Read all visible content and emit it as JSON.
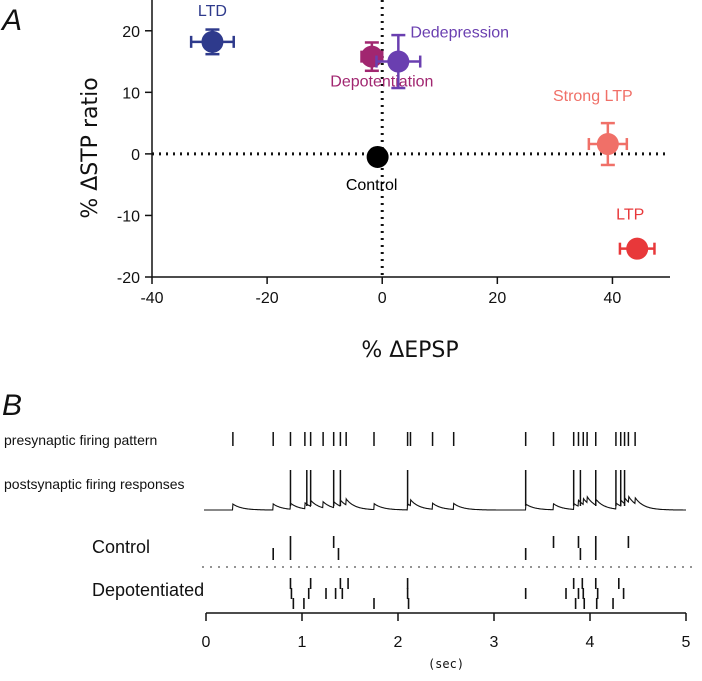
{
  "chart_data": [
    {
      "type": "scatter",
      "panel": "A",
      "xlabel": "% ΔEPSP",
      "ylabel": "% ΔSTP ratio",
      "xlim": [
        -40,
        50
      ],
      "ylim": [
        -20,
        25
      ],
      "xticks": [
        -40,
        -20,
        0,
        20,
        40
      ],
      "yticks": [
        -20,
        -10,
        0,
        10,
        20
      ],
      "grid": false,
      "reference_lines": [
        "x = 0 (dotted)",
        "y = 0 (dotted)"
      ],
      "points": [
        {
          "label": "LTD",
          "x": -29.5,
          "y": 18.2,
          "xerr": 3.7,
          "yerr": 2.0,
          "color": "#2e3a8c",
          "label_color": "#2e3a8c"
        },
        {
          "label": "Depotentiation",
          "x": -1.8,
          "y": 15.8,
          "xerr": 1.8,
          "yerr": 2.3,
          "color": "#a12670",
          "label_color": "#a12670"
        },
        {
          "label": "Dedepression",
          "x": 2.8,
          "y": 15.0,
          "xerr": 3.8,
          "yerr": 4.3,
          "color": "#6a3fb0",
          "label_color": "#6a3fb0"
        },
        {
          "label": "Control",
          "x": -0.8,
          "y": -0.5,
          "xerr": 0,
          "yerr": 0,
          "color": "#000000",
          "label_color": "#000000"
        },
        {
          "label": "Strong LTP",
          "x": 39.2,
          "y": 1.6,
          "xerr": 3.3,
          "yerr": 3.4,
          "color": "#f07068",
          "label_color": "#f07068"
        },
        {
          "label": "LTP",
          "x": 44.3,
          "y": -15.4,
          "xerr": 3.0,
          "yerr": 1.1,
          "color": "#e8383a",
          "label_color": "#e8383a"
        }
      ]
    },
    {
      "type": "raster",
      "panel": "B",
      "xlim": [
        0,
        5
      ],
      "xticks": [
        0,
        1,
        2,
        3,
        4,
        5
      ],
      "xunit": "(sec)",
      "rows": {
        "presynaptic_label": "presynaptic firing pattern",
        "postsynaptic_label": "postsynaptic firing responses",
        "control_label": "Control",
        "depotentiated_label": "Depotentiated"
      },
      "presynaptic_spikes": [
        0.28,
        0.7,
        0.88,
        1.03,
        1.09,
        1.22,
        1.33,
        1.4,
        1.46,
        1.75,
        2.1,
        2.13,
        2.36,
        2.58,
        3.33,
        3.62,
        3.83,
        3.88,
        3.93,
        3.97,
        4.06,
        4.27,
        4.32,
        4.36,
        4.4,
        4.47
      ],
      "postsynaptic_spikes": [
        0.88,
        1.05,
        1.09,
        1.33,
        1.4,
        2.1,
        3.33,
        3.83,
        3.9,
        4.06,
        4.27,
        4.32,
        4.36
      ],
      "control_trials": [
        [
          0.88,
          1.33,
          3.62,
          3.88,
          4.06,
          4.4
        ],
        [
          0.7,
          0.88,
          1.38,
          3.33,
          3.9,
          4.06
        ]
      ],
      "depotentiated_trials": [
        [
          0.88,
          1.09,
          1.4,
          1.48,
          2.1,
          3.83,
          3.92,
          4.06,
          4.3
        ],
        [
          0.89,
          1.07,
          1.25,
          1.35,
          1.42,
          2.1,
          3.33,
          3.75,
          3.88,
          3.93,
          4.08,
          4.35
        ],
        [
          0.91,
          1.02,
          1.75,
          2.11,
          3.85,
          3.94,
          4.07,
          4.24
        ]
      ]
    }
  ]
}
